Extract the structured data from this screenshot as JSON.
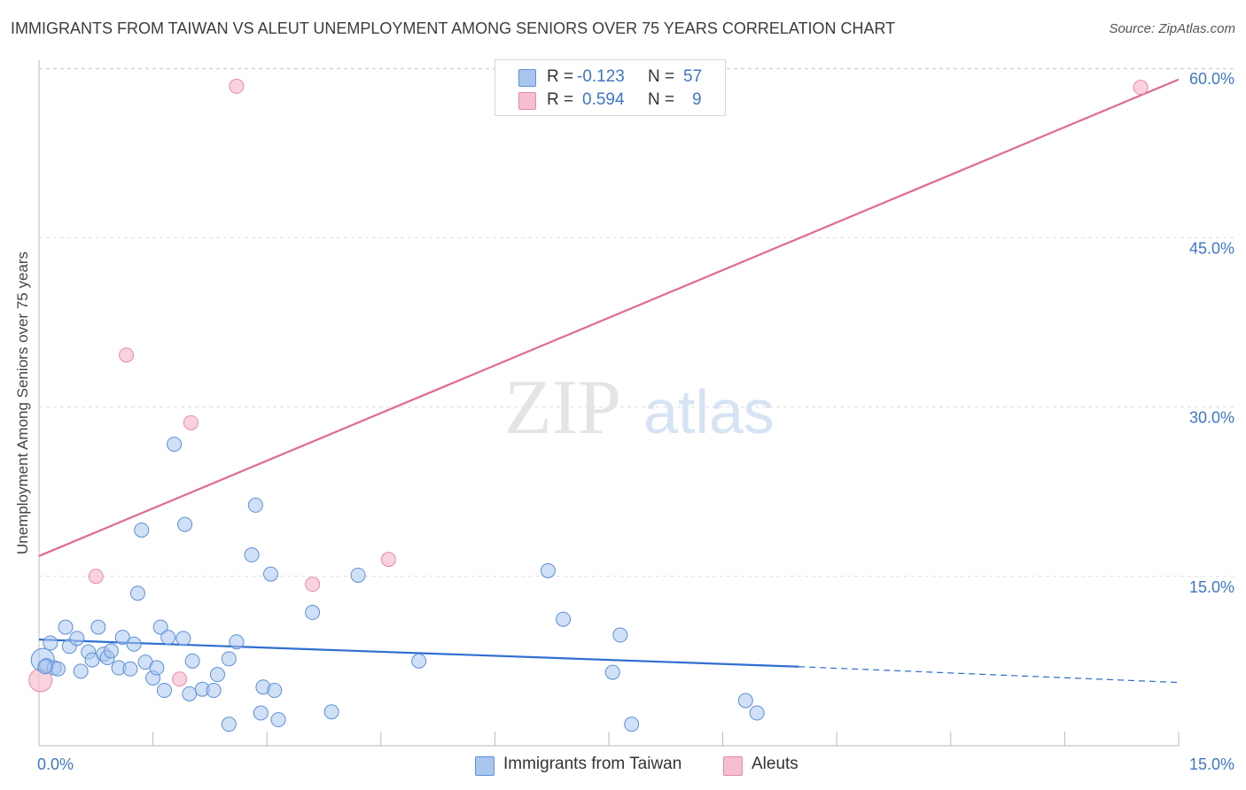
{
  "title": "IMMIGRANTS FROM TAIWAN VS ALEUT UNEMPLOYMENT AMONG SENIORS OVER 75 YEARS CORRELATION CHART",
  "source": "Source: ZipAtlas.com",
  "watermark": {
    "zip": "ZIP",
    "atlas": "atlas"
  },
  "legend": {
    "rows": [
      {
        "r_label": "R =",
        "r_value": "-0.123",
        "n_label": "N =",
        "n_value": "57"
      },
      {
        "r_label": "R =",
        "r_value": "0.594",
        "n_label": "N =",
        "n_value": "9"
      }
    ]
  },
  "bottom_legend": [
    "Immigrants from Taiwan",
    "Aleuts"
  ],
  "colors": {
    "taiwan_fill": "#a9c6ee",
    "taiwan_stroke": "#5d8fd6",
    "taiwan_line": "#2f6fd0",
    "aleut_fill": "#f6bfcf",
    "aleut_stroke": "#e68aa6",
    "aleut_line": "#e06a92",
    "tick_label": "#3f76c6",
    "grid": "#dddddd"
  },
  "chart_data": {
    "type": "scatter",
    "title": "IMMIGRANTS FROM TAIWAN VS ALEUT UNEMPLOYMENT AMONG SENIORS OVER 75 YEARS CORRELATION CHART",
    "xlabel": "",
    "ylabel": "Unemployment Among Seniors over 75 years",
    "xlim": [
      0,
      15
    ],
    "ylim": [
      0,
      62
    ],
    "x_tick_labels": [
      "0.0%",
      "15.0%"
    ],
    "y_ticks": [
      15,
      30,
      45,
      60
    ],
    "y_tick_labels": [
      "15.0%",
      "30.0%",
      "45.0%",
      "60.0%"
    ],
    "grid": true,
    "legend_position": "top-center",
    "series": [
      {
        "name": "Immigrants from Taiwan",
        "points": [
          [
            0.05,
            7.6
          ],
          [
            0.1,
            7.1
          ],
          [
            0.2,
            6.9
          ],
          [
            0.15,
            9.1
          ],
          [
            0.25,
            6.8
          ],
          [
            0.35,
            10.5
          ],
          [
            0.4,
            8.8
          ],
          [
            0.5,
            9.5
          ],
          [
            0.55,
            6.6
          ],
          [
            0.65,
            8.3
          ],
          [
            0.7,
            7.6
          ],
          [
            0.78,
            10.5
          ],
          [
            0.85,
            8.1
          ],
          [
            0.9,
            7.8
          ],
          [
            0.95,
            8.4
          ],
          [
            1.05,
            6.9
          ],
          [
            1.1,
            9.6
          ],
          [
            1.2,
            6.8
          ],
          [
            1.25,
            9.0
          ],
          [
            1.3,
            13.5
          ],
          [
            1.35,
            19.1
          ],
          [
            1.4,
            7.4
          ],
          [
            1.5,
            6.0
          ],
          [
            1.55,
            6.9
          ],
          [
            1.6,
            10.5
          ],
          [
            1.65,
            4.9
          ],
          [
            1.7,
            9.6
          ],
          [
            1.78,
            26.7
          ],
          [
            1.9,
            9.5
          ],
          [
            1.92,
            19.6
          ],
          [
            1.98,
            4.6
          ],
          [
            2.02,
            7.5
          ],
          [
            2.15,
            5.0
          ],
          [
            2.3,
            4.9
          ],
          [
            2.35,
            6.3
          ],
          [
            2.5,
            7.7
          ],
          [
            2.5,
            1.9
          ],
          [
            2.6,
            9.2
          ],
          [
            2.8,
            16.9
          ],
          [
            2.85,
            21.3
          ],
          [
            2.92,
            2.9
          ],
          [
            2.95,
            5.2
          ],
          [
            3.05,
            15.2
          ],
          [
            3.1,
            4.9
          ],
          [
            3.15,
            2.3
          ],
          [
            3.6,
            11.8
          ],
          [
            3.85,
            3.0
          ],
          [
            4.2,
            15.1
          ],
          [
            5.0,
            7.5
          ],
          [
            6.7,
            15.5
          ],
          [
            6.9,
            11.2
          ],
          [
            7.55,
            6.5
          ],
          [
            7.65,
            9.8
          ],
          [
            7.8,
            1.9
          ],
          [
            9.3,
            4.0
          ],
          [
            9.45,
            2.9
          ],
          [
            0.08,
            7.0
          ]
        ],
        "trend": {
          "x": [
            0,
            10.0
          ],
          "y": [
            9.4,
            7.0
          ],
          "dashed_to": [
            15,
            5.6
          ]
        }
      },
      {
        "name": "Aleuts",
        "points": [
          [
            0.02,
            5.8
          ],
          [
            0.75,
            15.0
          ],
          [
            1.15,
            34.6
          ],
          [
            1.85,
            5.9
          ],
          [
            2.0,
            28.6
          ],
          [
            2.6,
            58.4
          ],
          [
            3.6,
            14.3
          ],
          [
            4.6,
            16.5
          ],
          [
            14.5,
            58.3
          ]
        ],
        "trend": {
          "x": [
            0,
            15
          ],
          "y": [
            16.8,
            59.0
          ]
        }
      }
    ]
  }
}
